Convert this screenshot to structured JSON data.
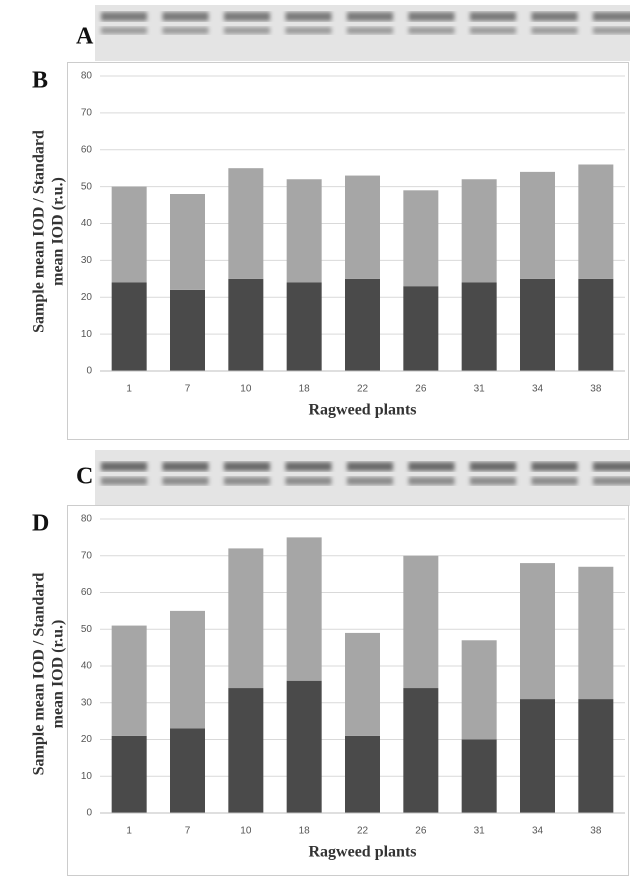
{
  "chart_data": [
    {
      "type": "bar",
      "stacked": true,
      "blot_label": "A",
      "panel_label": "B",
      "categories": [
        "1",
        "7",
        "10",
        "18",
        "22",
        "26",
        "31",
        "34",
        "38"
      ],
      "series": [
        {
          "color": "#4a4a4a",
          "values": [
            24,
            22,
            25,
            24,
            25,
            23,
            24,
            25,
            25
          ]
        },
        {
          "color": "#a6a6a6",
          "values": [
            26,
            26,
            30,
            28,
            28,
            26,
            28,
            29,
            31
          ]
        }
      ],
      "ylim": [
        0,
        80
      ],
      "yticks": [
        0,
        10,
        20,
        30,
        40,
        50,
        60,
        70,
        80
      ],
      "grid": true,
      "x_label": "Ragweed plants",
      "y_label": [
        "Sample mean IOD / Standard",
        "mean IOD (r.u.)"
      ]
    },
    {
      "type": "bar",
      "stacked": true,
      "blot_label": "C",
      "panel_label": "D",
      "categories": [
        "1",
        "7",
        "10",
        "18",
        "22",
        "26",
        "31",
        "34",
        "38"
      ],
      "series": [
        {
          "color": "#4a4a4a",
          "values": [
            21,
            23,
            34,
            36,
            21,
            34,
            20,
            31,
            31
          ]
        },
        {
          "color": "#a6a6a6",
          "values": [
            30,
            32,
            38,
            39,
            28,
            36,
            27,
            37,
            36
          ]
        }
      ],
      "ylim": [
        0,
        80
      ],
      "yticks": [
        0,
        10,
        20,
        30,
        40,
        50,
        60,
        70,
        80
      ],
      "grid": true,
      "x_label": "Ragweed plants",
      "y_label": [
        "Sample mean IOD / Standard",
        "mean IOD (r.u.)"
      ]
    }
  ]
}
